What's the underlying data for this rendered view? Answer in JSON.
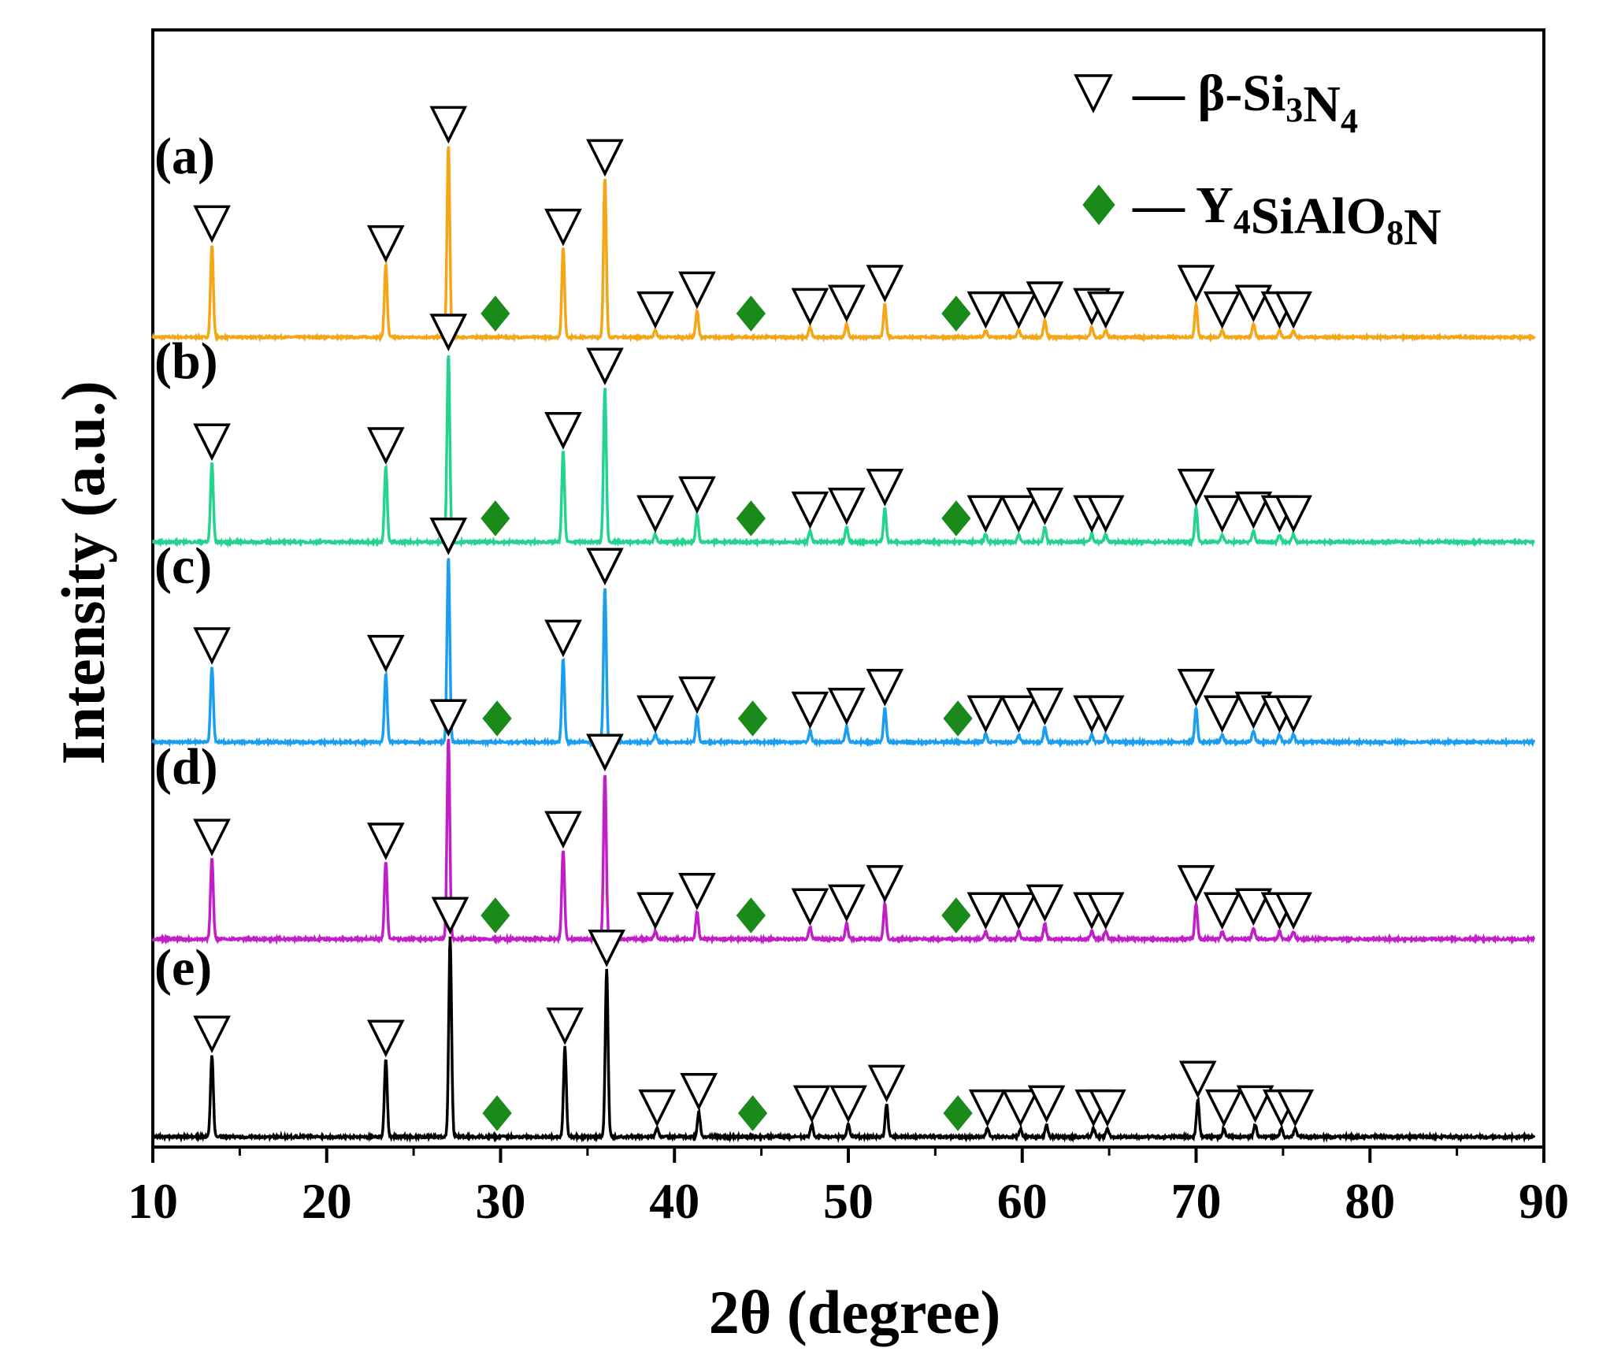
{
  "chart_data": {
    "type": "line",
    "title": "",
    "xlabel": "2θ (degree)",
    "ylabel": "Intensity (a.u.)",
    "xlim": [
      10,
      90
    ],
    "xticks": [
      10,
      20,
      30,
      40,
      50,
      60,
      70,
      80,
      90
    ],
    "xtick_labels": [
      "10",
      "20",
      "30",
      "40",
      "50",
      "60",
      "70",
      "80",
      "90"
    ],
    "y_units": "a.u.",
    "legend": [
      {
        "marker": "open-triangle-down",
        "dash": "—",
        "label": "β-Si",
        "sub1": "3",
        "mid": "N",
        "sub2": "4",
        "color": "#000000"
      },
      {
        "marker": "diamond",
        "dash": "—",
        "label": "Y",
        "sub1": "4",
        "mid": "SiAlO",
        "sub2": "8",
        "tail": "N",
        "color": "#1a8a1a"
      }
    ],
    "phases": {
      "beta_Si3N4_positions": [
        13.4,
        23.4,
        27.0,
        33.6,
        36.0,
        38.9,
        41.3,
        47.8,
        49.9,
        52.1,
        57.9,
        59.8,
        61.3,
        64.0,
        64.8,
        70.0,
        71.5,
        73.3,
        74.8,
        75.6
      ],
      "Y4SiAlO8N_positions": [
        29.7,
        44.4,
        56.2
      ]
    },
    "series": [
      {
        "name": "(a)",
        "color": "#f5a617",
        "peaks": [
          [
            13.4,
            28
          ],
          [
            23.4,
            22
          ],
          [
            27.0,
            58
          ],
          [
            33.6,
            27
          ],
          [
            36.0,
            48
          ],
          [
            38.9,
            2
          ],
          [
            41.3,
            8
          ],
          [
            47.8,
            3
          ],
          [
            49.9,
            4
          ],
          [
            52.1,
            10
          ],
          [
            57.9,
            2
          ],
          [
            59.8,
            2
          ],
          [
            61.3,
            5
          ],
          [
            64.0,
            3
          ],
          [
            64.8,
            2
          ],
          [
            70.0,
            10
          ],
          [
            71.5,
            2
          ],
          [
            73.3,
            4
          ],
          [
            74.8,
            2
          ],
          [
            75.6,
            2
          ]
        ]
      },
      {
        "name": "(b)",
        "color": "#24d38e",
        "peaks": [
          [
            13.4,
            21
          ],
          [
            23.4,
            20
          ],
          [
            27.0,
            50
          ],
          [
            33.6,
            24
          ],
          [
            36.0,
            41
          ],
          [
            38.9,
            2
          ],
          [
            41.3,
            7
          ],
          [
            47.8,
            3
          ],
          [
            49.9,
            4
          ],
          [
            52.1,
            9
          ],
          [
            57.9,
            2
          ],
          [
            59.8,
            2
          ],
          [
            61.3,
            4
          ],
          [
            64.0,
            2
          ],
          [
            64.8,
            2
          ],
          [
            70.0,
            9
          ],
          [
            71.5,
            2
          ],
          [
            73.3,
            3
          ],
          [
            74.8,
            2
          ],
          [
            75.6,
            2
          ]
        ]
      },
      {
        "name": "(c)",
        "color": "#1b9ef0",
        "peaks": [
          [
            13.4,
            20
          ],
          [
            23.4,
            18
          ],
          [
            27.0,
            49
          ],
          [
            33.6,
            22
          ],
          [
            36.0,
            41
          ],
          [
            38.9,
            2
          ],
          [
            41.3,
            7
          ],
          [
            47.8,
            3
          ],
          [
            49.9,
            4
          ],
          [
            52.1,
            9
          ],
          [
            57.9,
            2
          ],
          [
            59.8,
            2
          ],
          [
            61.3,
            4
          ],
          [
            64.0,
            2
          ],
          [
            64.8,
            2
          ],
          [
            70.0,
            9
          ],
          [
            71.5,
            2
          ],
          [
            73.3,
            3
          ],
          [
            74.8,
            2
          ],
          [
            75.6,
            2
          ]
        ]
      },
      {
        "name": "(d)",
        "color": "#c21ec8",
        "peaks": [
          [
            13.4,
            21
          ],
          [
            23.4,
            20
          ],
          [
            27.0,
            52
          ],
          [
            33.6,
            23
          ],
          [
            36.0,
            43
          ],
          [
            38.9,
            2
          ],
          [
            41.3,
            7
          ],
          [
            47.8,
            3
          ],
          [
            49.9,
            4
          ],
          [
            52.1,
            9
          ],
          [
            57.9,
            2
          ],
          [
            59.8,
            2
          ],
          [
            61.3,
            4
          ],
          [
            64.0,
            2
          ],
          [
            64.8,
            2
          ],
          [
            70.0,
            9
          ],
          [
            71.5,
            2
          ],
          [
            73.3,
            3
          ],
          [
            74.8,
            2
          ],
          [
            75.6,
            2
          ]
        ]
      },
      {
        "name": "(e)",
        "color": "#000000",
        "peaks": [
          [
            13.4,
            20
          ],
          [
            23.4,
            19
          ],
          [
            27.1,
            49
          ],
          [
            33.7,
            22
          ],
          [
            36.1,
            41
          ],
          [
            39.0,
            2
          ],
          [
            41.4,
            6
          ],
          [
            47.9,
            3
          ],
          [
            50.0,
            3
          ],
          [
            52.2,
            8
          ],
          [
            58.0,
            2
          ],
          [
            59.9,
            2
          ],
          [
            61.4,
            3
          ],
          [
            64.1,
            2
          ],
          [
            64.9,
            2
          ],
          [
            70.1,
            9
          ],
          [
            71.6,
            2
          ],
          [
            73.4,
            3
          ],
          [
            74.9,
            2
          ],
          [
            75.7,
            2
          ]
        ]
      }
    ]
  }
}
